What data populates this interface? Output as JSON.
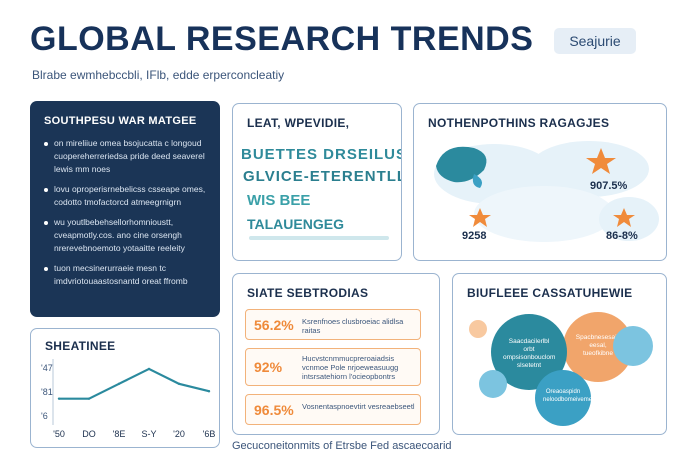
{
  "header": {
    "title": "GLOBAL RESEARCH TRENDS",
    "badge": "Seajurie",
    "subtitle": "Blrabe ewmhebccbli, IFlb, edde erperconcleatiy"
  },
  "left_panel": {
    "title": "SOUTHPESU WAR MATGEE",
    "items": [
      "on mireliiue omea bsojucatta c longoud cuopereherreriedsa pride deed seaverel lewis mm noes",
      "lovu oproperisrnebelicss csseape omes, codotto tmofactorcd atmeegrnigrn",
      "wu youtlbebehsellorhomnioustt, cveapmotly.cos. ano cine orsengh nrerevebnoemoto yotaaitte reeleity",
      "tuon mecsinerurraeie mesn tc imdvriotouaastosnantd oreat ffromb"
    ]
  },
  "word_card": {
    "title": "LEAT, WPEVIDIE,",
    "words": [
      "BUETTES DRSEILUST",
      "GLVICE-ETERENTLL",
      "WIS BEE",
      "TALAUENGEG"
    ]
  },
  "map_card": {
    "title": "NOTHENPOTHINS RAGAGJES",
    "labels": [
      "907.5%",
      "9258",
      "86-8%"
    ]
  },
  "stats_card": {
    "title": "SIATE SEBTRODIAS",
    "rows": [
      {
        "value": "56.2%",
        "text": "Ksrenfnoes clusbroeiac alidlsa raitas"
      },
      {
        "value": "92%",
        "text": "Hucvstcnmmucpreroaiadsis vcnmoe Pole nrjoeweasuugg intsrsatehiorn l'ocieopbontrs"
      },
      {
        "value": "96.5%",
        "text": "Vosnentaspnoevtirt vesreaebseetl"
      }
    ]
  },
  "bubble_card": {
    "title": "BIUFLEEE CASSATUHEWIE",
    "bubbles": [
      {
        "label": "Saacdacilerlbl orbt ompsisonbouclom slsetetnt",
        "color": "#2b8a9e"
      },
      {
        "label": "Spacbnesesaio eesal, tueofkibne",
        "color": "#f1a56b"
      },
      {
        "label": "Oreaoaspidn neloodbomeivemeno",
        "color": "#3ba0c4"
      }
    ],
    "colors": {
      "teal": "#2b8a9e",
      "orange": "#f1a56b",
      "blue": "#3ba0c4",
      "light_blue": "#7cc4e0",
      "peach": "#f8c9a0"
    }
  },
  "line_card": {
    "title": "SHEATINEE",
    "y_ticks": [
      "'47",
      "'81",
      "'6"
    ],
    "x_ticks": [
      "'50",
      "DO",
      "'8E",
      "S-Y",
      "'20",
      "'6B"
    ]
  },
  "chart_data": {
    "type": "line",
    "title": "SHEATINEE",
    "categories": [
      "'50",
      "DO",
      "'8E",
      "S-Y",
      "'20",
      "'6B"
    ],
    "series": [
      {
        "values": [
          18,
          18,
          30,
          42,
          30,
          24
        ]
      }
    ],
    "xlabel": "",
    "ylabel": "",
    "ylim": [
      0,
      50
    ],
    "grid": false
  },
  "footer": "Gecuconeitonmits of Etrsbe Fed ascaecoarid",
  "colors": {
    "navy": "#1b3556",
    "teal_line": "#2b8a9e",
    "orange": "#ef8a3a",
    "border": "#9bb4d0"
  }
}
